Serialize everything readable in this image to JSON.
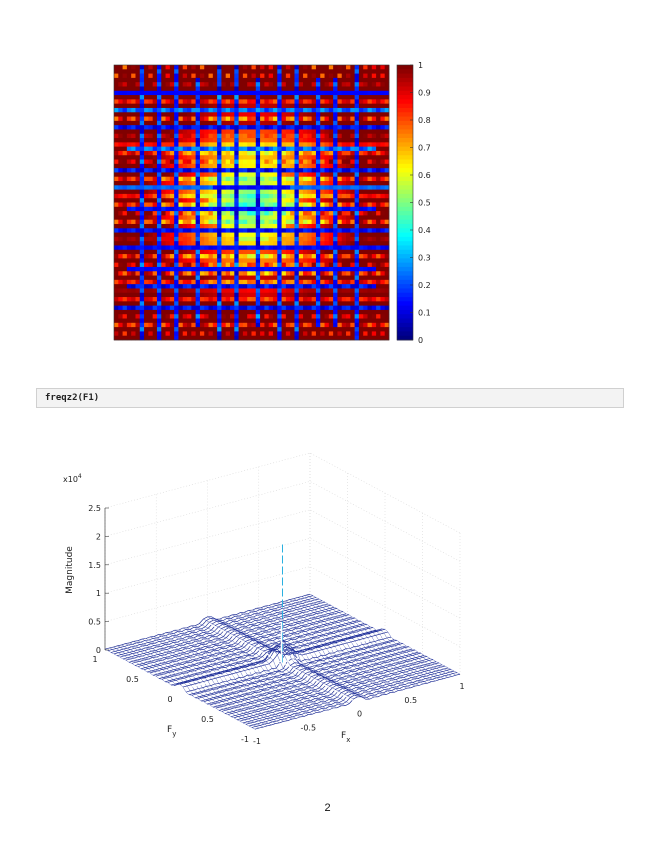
{
  "heatmap": {
    "chart_data": {
      "type": "heatmap",
      "title": "",
      "xlabel": "",
      "ylabel": "",
      "colorbar": {
        "ticks": [
          "0",
          "0.1",
          "0.2",
          "0.3",
          "0.4",
          "0.5",
          "0.6",
          "0.7",
          "0.8",
          "0.9",
          "1"
        ],
        "range": [
          0,
          1
        ]
      },
      "colormap": "jet",
      "background_color": "#8b0a0a",
      "center_value": 0.45,
      "edge_value": 1.0,
      "line_value": 0.05
    }
  },
  "code": {
    "text": "freqz2(F1)"
  },
  "surface": {
    "chart_data": {
      "type": "surface",
      "title": "",
      "zlabel": "Magnitude",
      "xlabel": "F",
      "xlabel_sub": "x",
      "ylabel": "F",
      "ylabel_sub": "y",
      "z_exponent": "x10",
      "z_exponent_power": "4",
      "z_ticks": [
        "0",
        "0.5",
        "1",
        "1.5",
        "2",
        "2.5"
      ],
      "zlim": [
        0,
        25000
      ],
      "x_ticks": [
        "-1",
        "-0.5",
        "0",
        "0.5",
        "1"
      ],
      "y_ticks": [
        "-1",
        "0.5",
        "0",
        "0.5",
        "1"
      ],
      "xlim": [
        -1,
        1
      ],
      "ylim": [
        -1,
        1
      ],
      "peak": {
        "x": 0,
        "y": 0,
        "z": 21000
      },
      "color": "#0a1a8a"
    }
  },
  "page": {
    "number": "2"
  }
}
